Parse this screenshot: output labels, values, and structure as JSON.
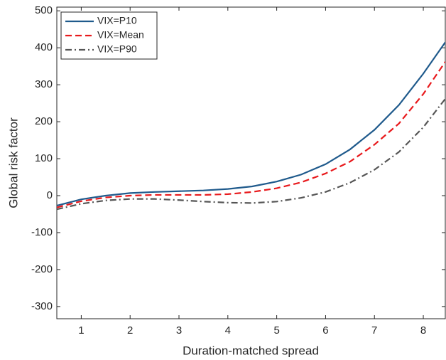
{
  "chart_data": {
    "type": "line",
    "x_label": "Duration-matched spread",
    "y_label": "Global risk factor",
    "x": [
      0.5,
      1,
      1.5,
      2,
      2.5,
      3,
      3.5,
      4,
      4.5,
      5,
      5.5,
      6,
      6.5,
      7,
      7.5,
      8,
      8.45
    ],
    "series": [
      {
        "name": "VIX=P10",
        "color": "#1f5a8c",
        "dash": "solid",
        "values": [
          -27,
          -10,
          0,
          7,
          10,
          12,
          14,
          18,
          25,
          38,
          57,
          85,
          125,
          178,
          245,
          330,
          415
        ]
      },
      {
        "name": "VIX=Mean",
        "color": "#e8191c",
        "dash": "dashed",
        "values": [
          -32,
          -15,
          -5,
          0,
          2,
          2,
          2,
          4,
          10,
          20,
          36,
          60,
          92,
          138,
          195,
          275,
          362
        ]
      },
      {
        "name": "VIX=P90",
        "color": "#555555",
        "dash": "dashdot",
        "values": [
          -37,
          -22,
          -13,
          -9,
          -9,
          -12,
          -16,
          -19,
          -20,
          -16,
          -6,
          10,
          35,
          70,
          118,
          185,
          262
        ]
      }
    ],
    "xlim": [
      0.5,
      8.45
    ],
    "ylim": [
      -333,
      510
    ],
    "xticks": [
      1,
      2,
      3,
      4,
      5,
      6,
      7,
      8
    ],
    "yticks": [
      -300,
      -200,
      -100,
      0,
      100,
      200,
      300,
      400,
      500
    ],
    "legend": "upper left",
    "grid": false
  }
}
